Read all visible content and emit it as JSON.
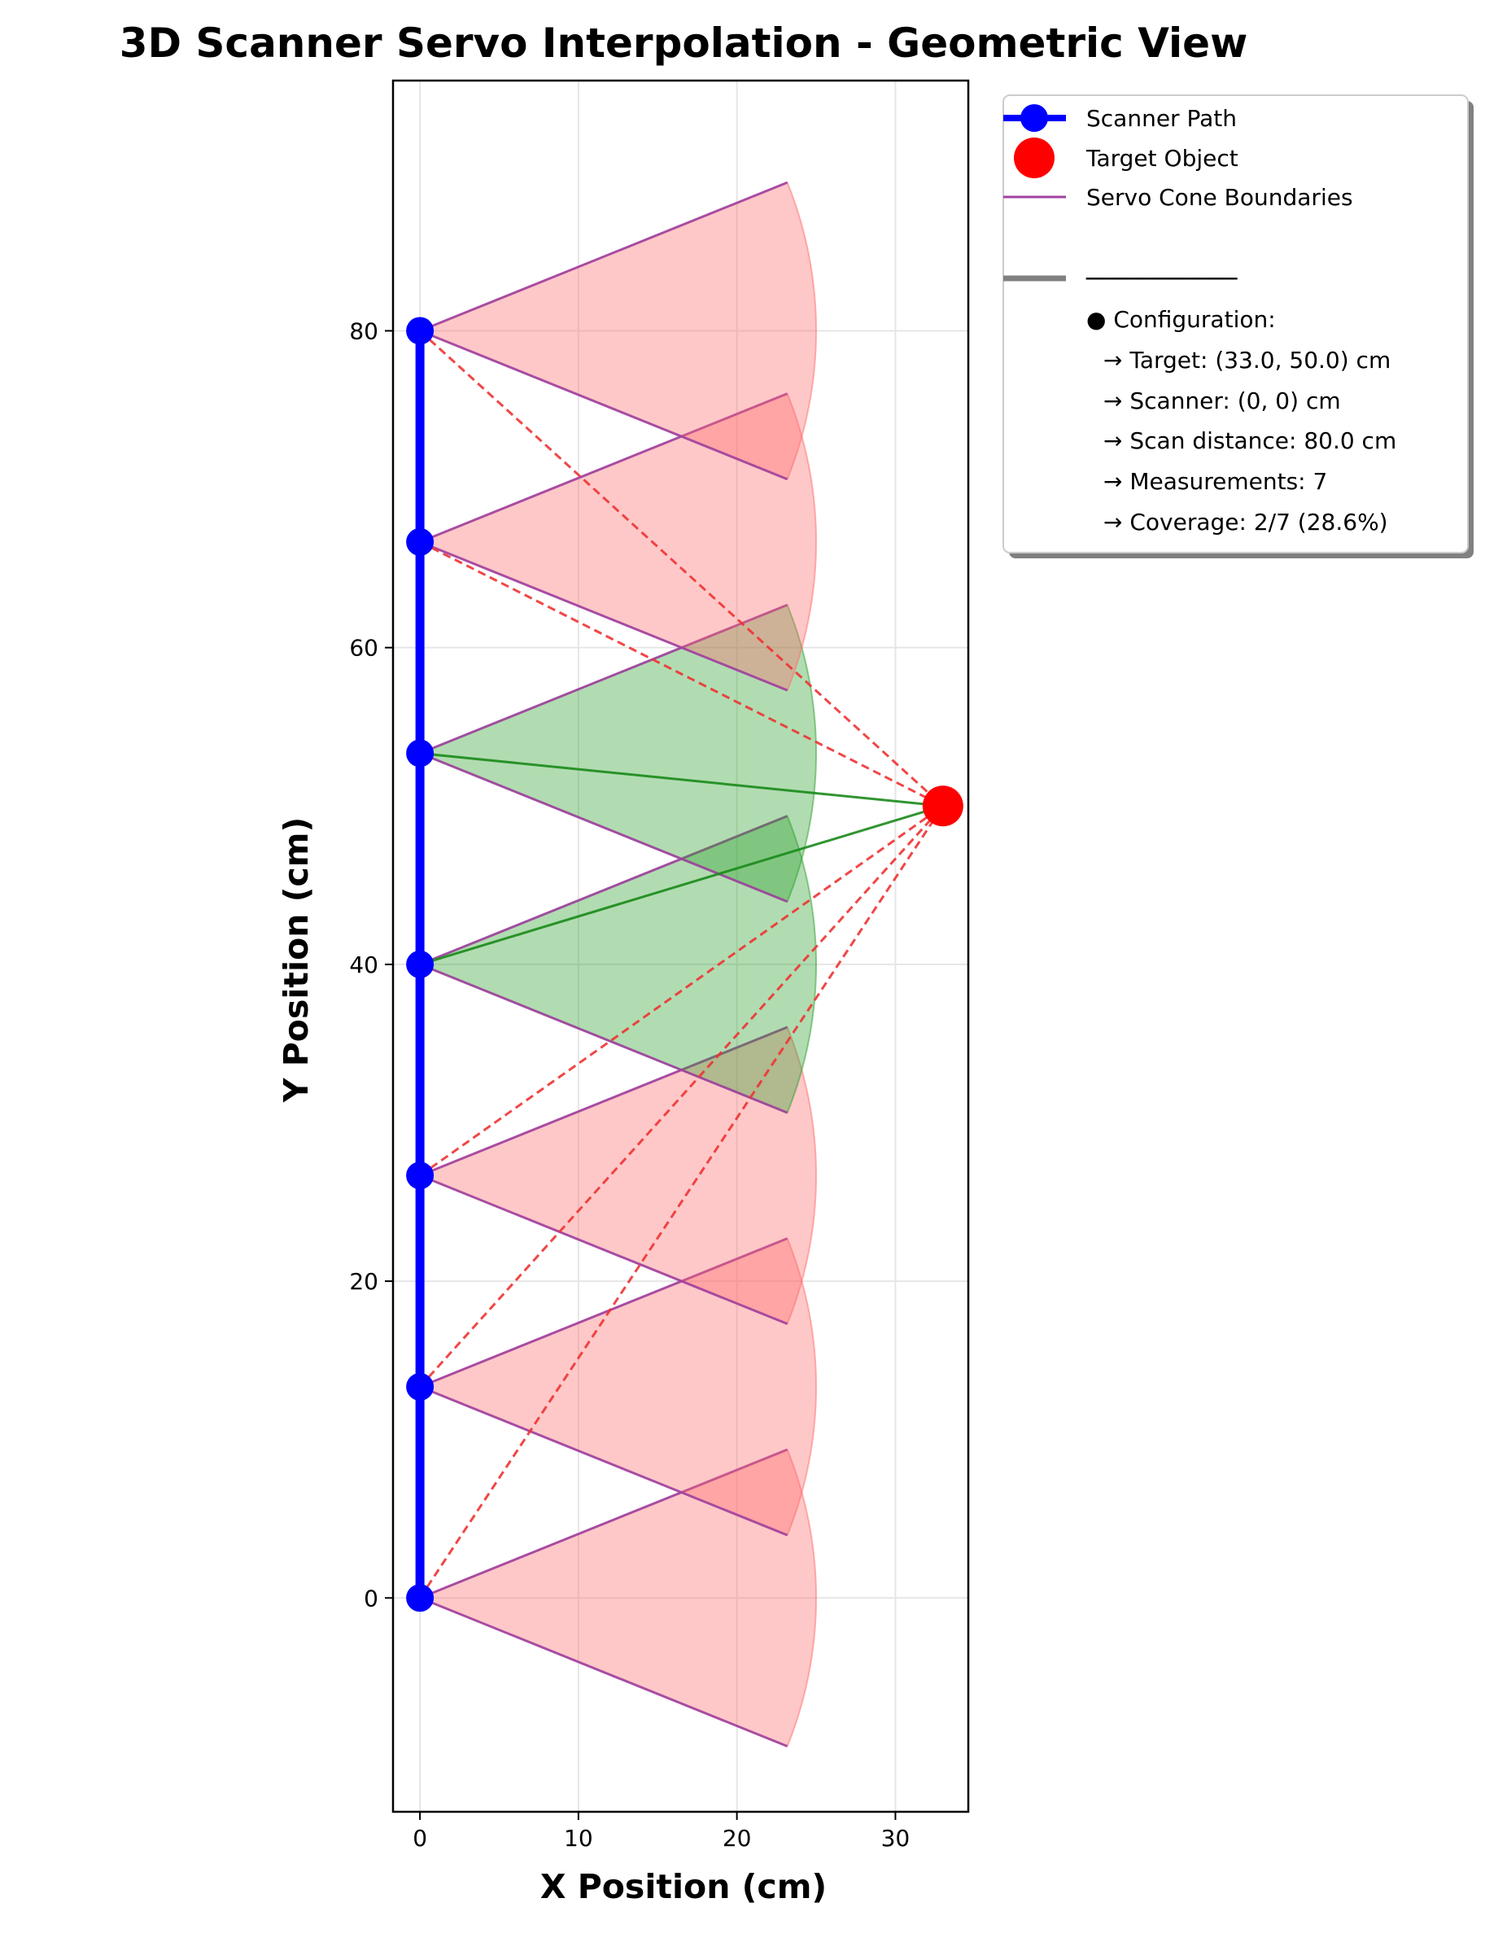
{
  "chart_data": {
    "type": "scatter",
    "title": "3D Scanner Servo Interpolation - Geometric View",
    "xlabel": "X Position (cm)",
    "ylabel": "Y Position (cm)",
    "xlim": [
      -1.7,
      34.6
    ],
    "ylim": [
      -13.5,
      95.8
    ],
    "xticks": [
      0,
      10,
      20,
      30
    ],
    "yticks": [
      0,
      20,
      40,
      60,
      80
    ],
    "grid": true,
    "legend_position": "outside-upper-right",
    "scanner_path": {
      "name": "Scanner Path",
      "color": "#0000ff",
      "x": [
        0,
        0,
        0,
        0,
        0,
        0,
        0
      ],
      "y": [
        0.0,
        13.33,
        26.67,
        40.0,
        53.33,
        66.67,
        80.0
      ]
    },
    "target": {
      "name": "Target Object",
      "x": 33.0,
      "y": 50.0,
      "color": "#ff0000"
    },
    "cones": {
      "name": "Servo Cone Boundaries",
      "boundary_color": "#a040a0",
      "radius": 25,
      "half_angle_deg": 22,
      "hit_color": "#2ca02c",
      "miss_color": "#ff6b6b",
      "hits": [
        false,
        false,
        false,
        true,
        true,
        false,
        false
      ]
    },
    "legend": {
      "scanner_path": "Scanner Path",
      "target": "Target Object",
      "cones": "Servo Cone Boundaries",
      "separator": "───────────",
      "config_title": "● Configuration:",
      "config_lines": [
        "→ Target: (33.0, 50.0) cm",
        "→ Scanner: (0, 0) cm",
        "→ Scan distance: 80.0 cm",
        "→ Measurements: 7",
        "→ Coverage: 2/7 (28.6%)"
      ]
    }
  }
}
